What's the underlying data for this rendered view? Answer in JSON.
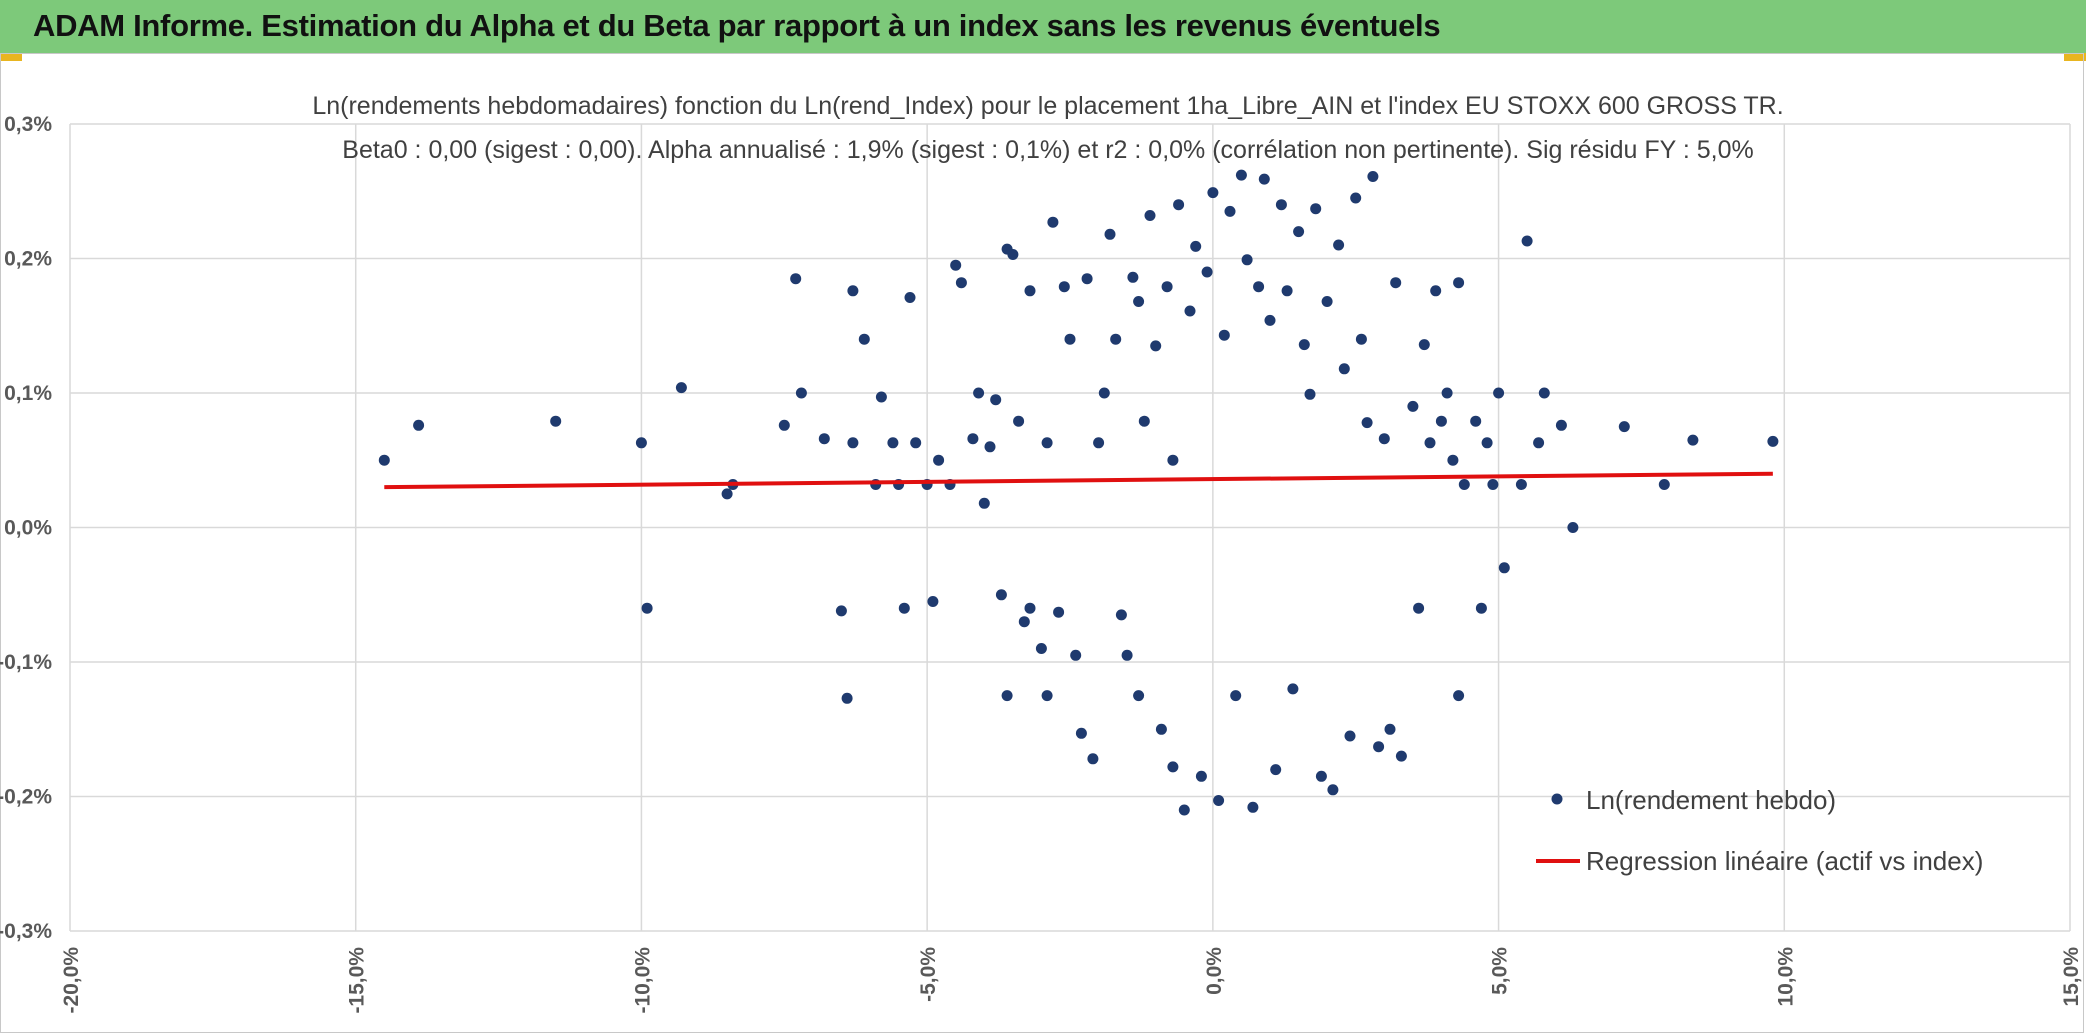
{
  "header": {
    "title": "ADAM Informe. Estimation du Alpha et du Beta par rapport à un index sans les revenus éventuels"
  },
  "colors": {
    "header_bg": "#7dc97a",
    "accent": "#e8b520",
    "points": "#1f3a6e",
    "regression": "#e01010",
    "grid": "#d9d9d9"
  },
  "chart_data": {
    "type": "scatter",
    "title": "Ln(rendements hebdomadaires) fonction du Ln(rend_Index) pour le placement 1ha_Libre_AIN et l'index EU STOXX 600 GROSS TR.",
    "subtitle": "Beta0 : 0,00 (sigest : 0,00). Alpha annualisé : 1,9% (sigest : 0,1%) et r2 : 0,0% (corrélation non pertinente). Sig résidu FY : 5,0%",
    "xlim": [
      -20,
      15
    ],
    "ylim": [
      -0.3,
      0.3
    ],
    "x_ticks": [
      -20,
      -15,
      -10,
      -5,
      0,
      5,
      10,
      15
    ],
    "x_tick_labels": [
      "-20,0%",
      "-15,0%",
      "-10,0%",
      "-5,0%",
      "0,0%",
      "5,0%",
      "10,0%",
      "15,0%"
    ],
    "y_ticks": [
      0.3,
      0.2,
      0.1,
      0.0,
      -0.1,
      -0.2,
      -0.3
    ],
    "y_tick_labels": [
      "0,3%",
      "0,2%",
      "0,1%",
      "0,0%",
      "-0,1%",
      "-0,2%",
      "-0,3%"
    ],
    "legend": [
      "Ln(rendement hebdo)",
      "Regression linéaire (actif vs index)"
    ],
    "legend_position": "bottom-right",
    "regression": {
      "x": [
        -14.5,
        9.8
      ],
      "y": [
        0.03,
        0.04
      ]
    },
    "series": [
      {
        "name": "Ln(rendement hebdo)",
        "points": [
          [
            -14.5,
            0.05
          ],
          [
            -13.9,
            0.076
          ],
          [
            -11.5,
            0.079
          ],
          [
            -10.0,
            0.063
          ],
          [
            -9.9,
            -0.06
          ],
          [
            -9.3,
            0.104
          ],
          [
            -8.5,
            0.025
          ],
          [
            -8.4,
            0.032
          ],
          [
            -7.5,
            0.076
          ],
          [
            -7.3,
            0.185
          ],
          [
            -7.2,
            0.1
          ],
          [
            -6.8,
            0.066
          ],
          [
            -6.5,
            -0.062
          ],
          [
            -6.4,
            -0.127
          ],
          [
            -6.3,
            0.176
          ],
          [
            -6.3,
            0.063
          ],
          [
            -6.1,
            0.14
          ],
          [
            -5.9,
            0.032
          ],
          [
            -5.8,
            0.097
          ],
          [
            -5.6,
            0.063
          ],
          [
            -5.5,
            0.032
          ],
          [
            -5.4,
            -0.06
          ],
          [
            -5.3,
            0.171
          ],
          [
            -5.2,
            0.063
          ],
          [
            -5.0,
            0.032
          ],
          [
            -4.9,
            -0.055
          ],
          [
            -4.8,
            0.05
          ],
          [
            -4.6,
            0.032
          ],
          [
            -4.5,
            0.195
          ],
          [
            -4.4,
            0.182
          ],
          [
            -4.2,
            0.066
          ],
          [
            -4.1,
            0.1
          ],
          [
            -4.0,
            0.018
          ],
          [
            -3.9,
            0.06
          ],
          [
            -3.8,
            0.095
          ],
          [
            -3.7,
            -0.05
          ],
          [
            -3.6,
            0.207
          ],
          [
            -3.6,
            -0.125
          ],
          [
            -3.5,
            0.203
          ],
          [
            -3.4,
            0.079
          ],
          [
            -3.3,
            -0.07
          ],
          [
            -3.2,
            0.176
          ],
          [
            -3.2,
            -0.06
          ],
          [
            -3.0,
            -0.09
          ],
          [
            -2.9,
            -0.125
          ],
          [
            -2.9,
            0.063
          ],
          [
            -2.8,
            0.227
          ],
          [
            -2.7,
            -0.063
          ],
          [
            -2.6,
            0.179
          ],
          [
            -2.5,
            0.14
          ],
          [
            -2.4,
            -0.095
          ],
          [
            -2.3,
            -0.153
          ],
          [
            -2.2,
            0.185
          ],
          [
            -2.1,
            -0.172
          ],
          [
            -2.0,
            0.063
          ],
          [
            -1.9,
            0.1
          ],
          [
            -1.8,
            0.218
          ],
          [
            -1.7,
            0.14
          ],
          [
            -1.6,
            -0.065
          ],
          [
            -1.5,
            -0.095
          ],
          [
            -1.4,
            0.186
          ],
          [
            -1.3,
            0.168
          ],
          [
            -1.3,
            -0.125
          ],
          [
            -1.2,
            0.079
          ],
          [
            -1.1,
            0.232
          ],
          [
            -1.0,
            0.135
          ],
          [
            -0.9,
            -0.15
          ],
          [
            -0.8,
            0.179
          ],
          [
            -0.7,
            0.05
          ],
          [
            -0.7,
            -0.178
          ],
          [
            -0.6,
            0.24
          ],
          [
            -0.5,
            -0.21
          ],
          [
            -0.4,
            0.161
          ],
          [
            -0.3,
            0.209
          ],
          [
            -0.2,
            -0.185
          ],
          [
            -0.1,
            0.19
          ],
          [
            0.0,
            0.249
          ],
          [
            0.1,
            -0.203
          ],
          [
            0.2,
            0.143
          ],
          [
            0.3,
            0.235
          ],
          [
            0.4,
            -0.125
          ],
          [
            0.5,
            0.262
          ],
          [
            0.6,
            0.199
          ],
          [
            0.7,
            -0.208
          ],
          [
            0.8,
            0.179
          ],
          [
            0.9,
            0.259
          ],
          [
            1.0,
            0.154
          ],
          [
            1.1,
            -0.18
          ],
          [
            1.2,
            0.24
          ],
          [
            1.3,
            0.176
          ],
          [
            1.4,
            -0.12
          ],
          [
            1.5,
            0.22
          ],
          [
            1.6,
            0.136
          ],
          [
            1.7,
            0.099
          ],
          [
            1.8,
            0.237
          ],
          [
            1.9,
            -0.185
          ],
          [
            2.0,
            0.168
          ],
          [
            2.1,
            -0.195
          ],
          [
            2.2,
            0.21
          ],
          [
            2.3,
            0.118
          ],
          [
            2.4,
            -0.155
          ],
          [
            2.5,
            0.245
          ],
          [
            2.6,
            0.14
          ],
          [
            2.7,
            0.078
          ],
          [
            2.8,
            0.261
          ],
          [
            2.9,
            -0.163
          ],
          [
            3.0,
            0.066
          ],
          [
            3.1,
            -0.15
          ],
          [
            3.2,
            0.182
          ],
          [
            3.3,
            -0.17
          ],
          [
            3.5,
            0.09
          ],
          [
            3.6,
            -0.06
          ],
          [
            3.7,
            0.136
          ],
          [
            3.8,
            0.063
          ],
          [
            3.9,
            0.176
          ],
          [
            4.0,
            0.079
          ],
          [
            4.1,
            0.1
          ],
          [
            4.2,
            0.05
          ],
          [
            4.3,
            0.182
          ],
          [
            4.3,
            -0.125
          ],
          [
            4.4,
            0.032
          ],
          [
            4.6,
            0.079
          ],
          [
            4.7,
            -0.06
          ],
          [
            4.8,
            0.063
          ],
          [
            4.9,
            0.032
          ],
          [
            5.0,
            0.1
          ],
          [
            5.1,
            -0.03
          ],
          [
            5.4,
            0.032
          ],
          [
            5.5,
            0.213
          ],
          [
            5.7,
            0.063
          ],
          [
            5.8,
            0.1
          ],
          [
            6.1,
            0.076
          ],
          [
            6.3,
            0.0
          ],
          [
            7.2,
            0.075
          ],
          [
            7.9,
            0.032
          ],
          [
            8.4,
            0.065
          ],
          [
            9.8,
            0.064
          ]
        ]
      }
    ]
  }
}
